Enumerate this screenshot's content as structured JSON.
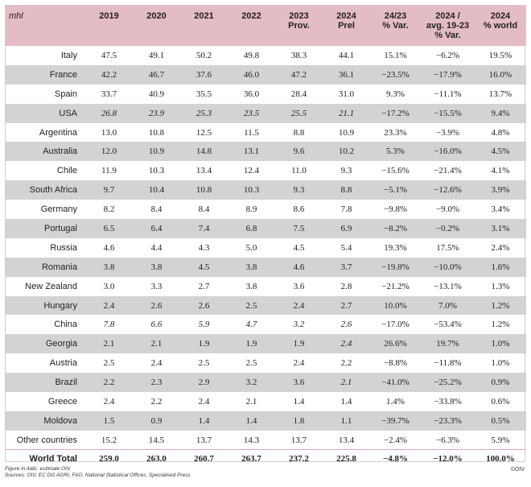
{
  "table": {
    "header": {
      "unit": "mhl",
      "cols": [
        {
          "line1": "2019",
          "line2": ""
        },
        {
          "line1": "2020",
          "line2": ""
        },
        {
          "line1": "2021",
          "line2": ""
        },
        {
          "line1": "2022",
          "line2": ""
        },
        {
          "line1": "2023",
          "line2": "Prov."
        },
        {
          "line1": "2024",
          "line2": "Prel"
        },
        {
          "line1": "24/23",
          "line2": "% Var."
        },
        {
          "line1": "2024 /",
          "line2": "avg. 19-23",
          "line3": "% Var."
        },
        {
          "line1": "2024",
          "line2": "% world"
        }
      ]
    },
    "rows": [
      {
        "country": "Italy",
        "values": [
          "47.5",
          "49.1",
          "50.2",
          "49.8",
          "38.3",
          "44.1",
          "15.1%",
          "−6.2%",
          "19.5%"
        ],
        "italic": []
      },
      {
        "country": "France",
        "values": [
          "42.2",
          "46.7",
          "37.6",
          "46.0",
          "47.2",
          "36.1",
          "−23.5%",
          "−17.9%",
          "16.0%"
        ],
        "italic": []
      },
      {
        "country": "Spain",
        "values": [
          "33.7",
          "40.9",
          "35.5",
          "36.0",
          "28.4",
          "31.0",
          "9.3%",
          "−11.1%",
          "13.7%"
        ],
        "italic": []
      },
      {
        "country": "USA",
        "values": [
          "26.8",
          "23.9",
          "25.3",
          "23.5",
          "25.5",
          "21.1",
          "−17.2%",
          "−15.5%",
          "9.4%"
        ],
        "italic": [
          0,
          1,
          2,
          3,
          4,
          5
        ]
      },
      {
        "country": "Argentina",
        "values": [
          "13.0",
          "10.8",
          "12.5",
          "11.5",
          "8.8",
          "10.9",
          "23.3%",
          "−3.9%",
          "4.8%"
        ],
        "italic": []
      },
      {
        "country": "Australia",
        "values": [
          "12.0",
          "10.9",
          "14.8",
          "13.1",
          "9.6",
          "10.2",
          "5.3%",
          "−16.0%",
          "4.5%"
        ],
        "italic": []
      },
      {
        "country": "Chile",
        "values": [
          "11.9",
          "10.3",
          "13.4",
          "12.4",
          "11.0",
          "9.3",
          "−15.6%",
          "−21.4%",
          "4.1%"
        ],
        "italic": []
      },
      {
        "country": "South Africa",
        "values": [
          "9.7",
          "10.4",
          "10.8",
          "10.3",
          "9.3",
          "8.8",
          "−5.1%",
          "−12.6%",
          "3.9%"
        ],
        "italic": []
      },
      {
        "country": "Germany",
        "values": [
          "8.2",
          "8.4",
          "8.4",
          "8.9",
          "8.6",
          "7.8",
          "−9.8%",
          "−9.0%",
          "3.4%"
        ],
        "italic": []
      },
      {
        "country": "Portugal",
        "values": [
          "6.5",
          "6.4",
          "7.4",
          "6.8",
          "7.5",
          "6.9",
          "−8.2%",
          "−0.2%",
          "3.1%"
        ],
        "italic": []
      },
      {
        "country": "Russia",
        "values": [
          "4.6",
          "4.4",
          "4.3",
          "5.0",
          "4.5",
          "5.4",
          "19.3%",
          "17.5%",
          "2.4%"
        ],
        "italic": []
      },
      {
        "country": "Romania",
        "values": [
          "3.8",
          "3.8",
          "4.5",
          "3.8",
          "4.6",
          "3.7",
          "−19.8%",
          "−10.0%",
          "1.6%"
        ],
        "italic": []
      },
      {
        "country": "New Zealand",
        "values": [
          "3.0",
          "3.3",
          "2.7",
          "3.8",
          "3.6",
          "2.8",
          "−21.2%",
          "−13.1%",
          "1.3%"
        ],
        "italic": []
      },
      {
        "country": "Hungary",
        "values": [
          "2.4",
          "2.6",
          "2.6",
          "2.5",
          "2.4",
          "2.7",
          "10.0%",
          "7.0%",
          "1.2%"
        ],
        "italic": []
      },
      {
        "country": "China",
        "values": [
          "7.8",
          "6.6",
          "5.9",
          "4.7",
          "3.2",
          "2.6",
          "−17.0%",
          "−53.4%",
          "1.2%"
        ],
        "italic": [
          0,
          1,
          2,
          3,
          4,
          5
        ]
      },
      {
        "country": "Georgia",
        "values": [
          "2.1",
          "2.1",
          "1.9",
          "1.9",
          "1.9",
          "2.4",
          "26.6%",
          "19.7%",
          "1.0%"
        ],
        "italic": [
          5
        ]
      },
      {
        "country": "Austria",
        "values": [
          "2.5",
          "2.4",
          "2.5",
          "2.5",
          "2.4",
          "2.2",
          "−8.8%",
          "−11.8%",
          "1.0%"
        ],
        "italic": []
      },
      {
        "country": "Brazil",
        "values": [
          "2.2",
          "2.3",
          "2.9",
          "3.2",
          "3.6",
          "2.1",
          "−41.0%",
          "−25.2%",
          "0.9%"
        ],
        "italic": [
          5
        ]
      },
      {
        "country": "Greece",
        "values": [
          "2.4",
          "2.2",
          "2.4",
          "2.1",
          "1.4",
          "1.4",
          "1.4%",
          "−33.8%",
          "0.6%"
        ],
        "italic": []
      },
      {
        "country": "Moldova",
        "values": [
          "1.5",
          "0.9",
          "1.4",
          "1.4",
          "1.8",
          "1.1",
          "−39.7%",
          "−23.3%",
          "0.5%"
        ],
        "italic": []
      },
      {
        "country": "Other countries",
        "values": [
          "15.2",
          "14.5",
          "13.7",
          "14.3",
          "13.7",
          "13.4",
          "−2.4%",
          "−6.3%",
          "5.9%"
        ],
        "italic": []
      }
    ],
    "total": {
      "country": "World Total",
      "values": [
        "259.0",
        "263.0",
        "260.7",
        "263.7",
        "237.2",
        "225.8",
        "−4.8%",
        "−12.0%",
        "100.0%"
      ]
    }
  },
  "footer": {
    "note1": "Figure in italic: estimate OIV",
    "note2": "Sources: OIV, EC DG AGRI, FAO, National Statistical Offices, Specialised Press",
    "copyright": "©OIV"
  },
  "colors": {
    "header_bg": "#e3bcc4",
    "stripe_bg": "#d3d3d3"
  }
}
